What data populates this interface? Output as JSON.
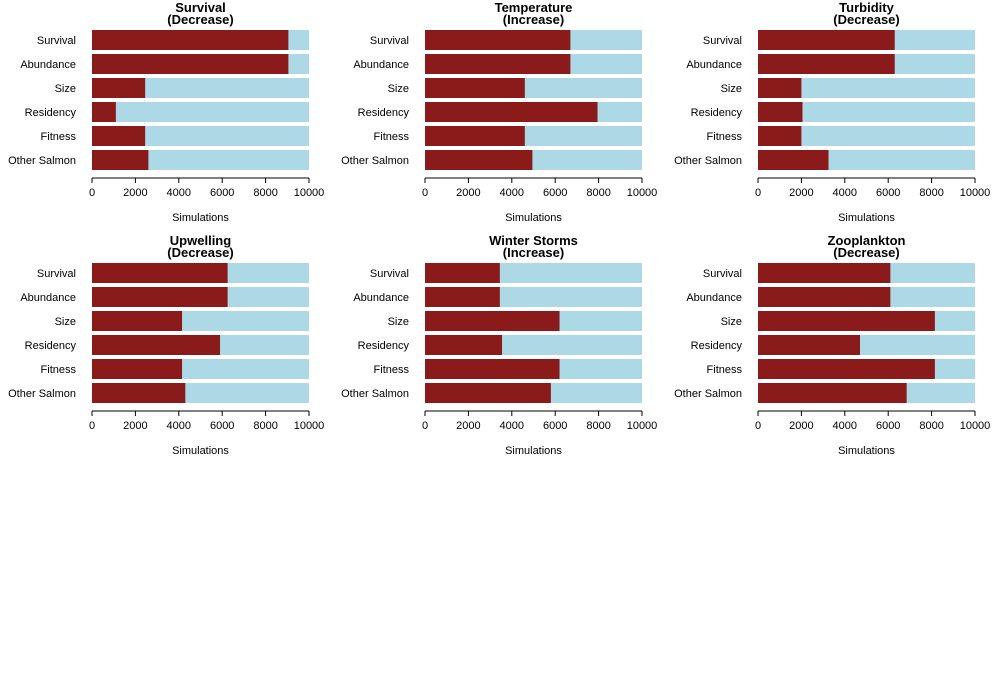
{
  "colors": {
    "proportion": "#8b1a1a",
    "remainder": "#add8e6"
  },
  "chart_data": [
    {
      "type": "bar",
      "orientation": "horizontal",
      "stacked": true,
      "title": "Survival",
      "subtitle": "(Decrease)",
      "xlabel": "Simulations",
      "xlim": [
        0,
        10000
      ],
      "xticks": [
        0,
        2000,
        4000,
        6000,
        8000,
        10000
      ],
      "categories": [
        "Survival",
        "Abundance",
        "Size",
        "Residency",
        "Fitness",
        "Other Salmon"
      ],
      "values": [
        9050,
        9050,
        2450,
        1100,
        2450,
        2600
      ]
    },
    {
      "type": "bar",
      "orientation": "horizontal",
      "stacked": true,
      "title": "Temperature",
      "subtitle": "(Increase)",
      "xlabel": "Simulations",
      "xlim": [
        0,
        10000
      ],
      "xticks": [
        0,
        2000,
        4000,
        6000,
        8000,
        10000
      ],
      "categories": [
        "Survival",
        "Abundance",
        "Size",
        "Residency",
        "Fitness",
        "Other Salmon"
      ],
      "values": [
        6700,
        6700,
        4600,
        7950,
        4600,
        4950
      ]
    },
    {
      "type": "bar",
      "orientation": "horizontal",
      "stacked": true,
      "title": "Turbidity",
      "subtitle": "(Decrease)",
      "xlabel": "Simulations",
      "xlim": [
        0,
        10000
      ],
      "xticks": [
        0,
        2000,
        4000,
        6000,
        8000,
        10000
      ],
      "categories": [
        "Survival",
        "Abundance",
        "Size",
        "Residency",
        "Fitness",
        "Other Salmon"
      ],
      "values": [
        6300,
        6300,
        2000,
        2050,
        2000,
        3250
      ]
    },
    {
      "type": "bar",
      "orientation": "horizontal",
      "stacked": true,
      "title": "Upwelling",
      "subtitle": "(Decrease)",
      "xlabel": "Simulations",
      "xlim": [
        0,
        10000
      ],
      "xticks": [
        0,
        2000,
        4000,
        6000,
        8000,
        10000
      ],
      "categories": [
        "Survival",
        "Abundance",
        "Size",
        "Residency",
        "Fitness",
        "Other Salmon"
      ],
      "values": [
        6250,
        6250,
        4150,
        5900,
        4150,
        4300
      ]
    },
    {
      "type": "bar",
      "orientation": "horizontal",
      "stacked": true,
      "title": "Winter Storms",
      "subtitle": "(Increase)",
      "xlabel": "Simulations",
      "xlim": [
        0,
        10000
      ],
      "xticks": [
        0,
        2000,
        4000,
        6000,
        8000,
        10000
      ],
      "categories": [
        "Survival",
        "Abundance",
        "Size",
        "Residency",
        "Fitness",
        "Other Salmon"
      ],
      "values": [
        3450,
        3450,
        6200,
        3550,
        6200,
        5800
      ]
    },
    {
      "type": "bar",
      "orientation": "horizontal",
      "stacked": true,
      "title": "Zooplankton",
      "subtitle": "(Decrease)",
      "xlabel": "Simulations",
      "xlim": [
        0,
        10000
      ],
      "xticks": [
        0,
        2000,
        4000,
        6000,
        8000,
        10000
      ],
      "categories": [
        "Survival",
        "Abundance",
        "Size",
        "Residency",
        "Fitness",
        "Other Salmon"
      ],
      "values": [
        6100,
        6100,
        8150,
        4700,
        8150,
        6850
      ]
    }
  ]
}
